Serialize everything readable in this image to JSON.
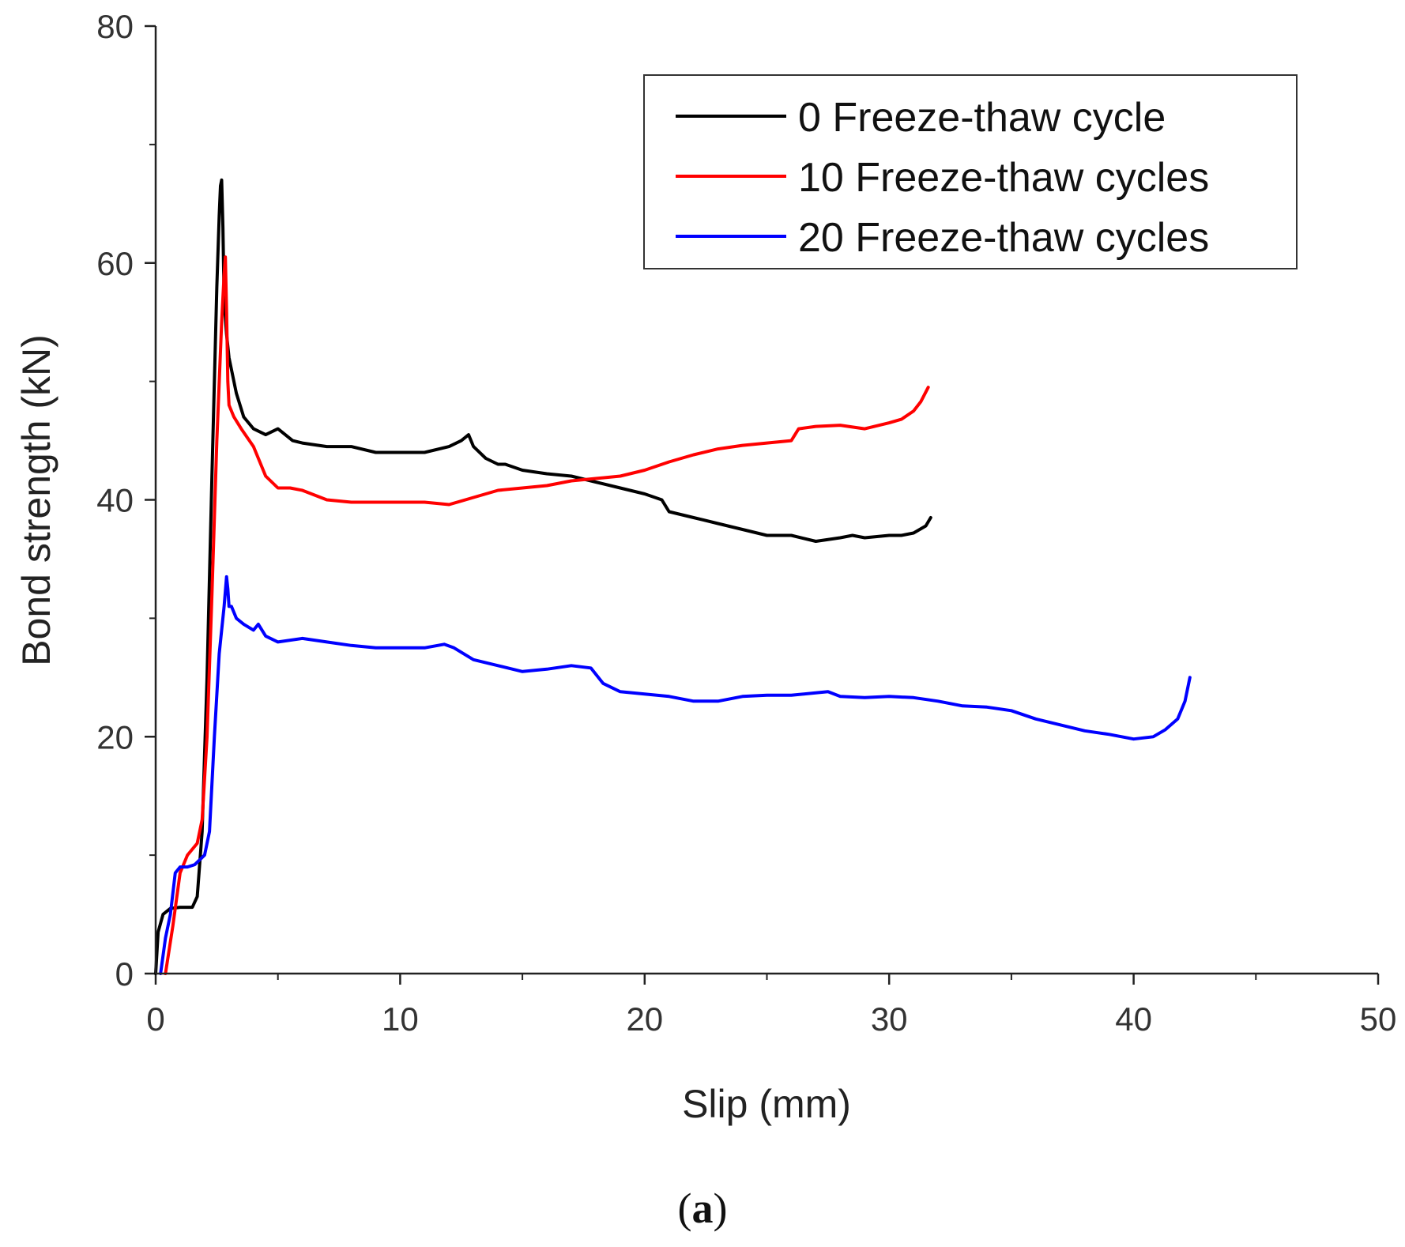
{
  "chart_data": {
    "type": "line",
    "title": "",
    "xlabel": "Slip (mm)",
    "ylabel": "Bond strength (kN)",
    "xlim": [
      0,
      50
    ],
    "ylim": [
      0,
      80
    ],
    "xticks": [
      0,
      10,
      20,
      30,
      40,
      50
    ],
    "yticks": [
      0,
      20,
      40,
      60,
      80
    ],
    "grid": false,
    "legend_position": "top-right",
    "caption": {
      "open": "(",
      "letter": "a",
      "close": ")"
    },
    "series": [
      {
        "name": "0 Freeze-thaw cycle",
        "color": "#000000",
        "x": [
          0.0,
          0.1,
          0.3,
          0.6,
          1.0,
          1.5,
          1.7,
          1.9,
          2.1,
          2.3,
          2.5,
          2.6,
          2.65,
          2.7,
          2.75,
          2.8,
          2.9,
          3.0,
          3.3,
          3.6,
          4.0,
          4.5,
          5.0,
          5.3,
          5.6,
          6.0,
          7.0,
          8.0,
          9.0,
          10.0,
          11.0,
          12.0,
          12.5,
          12.8,
          13.0,
          13.5,
          14.0,
          14.3,
          15.0,
          16.0,
          17.0,
          18.0,
          19.0,
          20.0,
          20.7,
          21.0,
          22.0,
          23.0,
          24.0,
          25.0,
          26.0,
          27.0,
          28.0,
          28.5,
          29.0,
          30.0,
          30.5,
          31.0,
          31.5,
          31.7
        ],
        "y": [
          0.0,
          3.5,
          5.0,
          5.5,
          5.6,
          5.6,
          6.5,
          12.0,
          25.0,
          42.0,
          58.0,
          64.0,
          66.5,
          67.0,
          63.0,
          57.0,
          54.0,
          52.0,
          49.0,
          47.0,
          46.0,
          45.5,
          46.0,
          45.5,
          45.0,
          44.8,
          44.5,
          44.5,
          44.0,
          44.0,
          44.0,
          44.5,
          45.0,
          45.5,
          44.5,
          43.5,
          43.0,
          43.0,
          42.5,
          42.2,
          42.0,
          41.5,
          41.0,
          40.5,
          40.0,
          39.0,
          38.5,
          38.0,
          37.5,
          37.0,
          37.0,
          36.5,
          36.8,
          37.0,
          36.8,
          37.0,
          37.0,
          37.2,
          37.8,
          38.5
        ]
      },
      {
        "name": "10 Freeze-thaw cycles",
        "color": "#ff0000",
        "x": [
          0.4,
          0.7,
          1.0,
          1.3,
          1.7,
          1.9,
          2.1,
          2.3,
          2.5,
          2.7,
          2.8,
          2.85,
          2.9,
          2.95,
          3.0,
          3.2,
          3.5,
          4.0,
          4.5,
          5.0,
          5.5,
          6.0,
          7.0,
          8.0,
          9.0,
          10.0,
          11.0,
          12.0,
          13.0,
          14.0,
          15.0,
          16.0,
          17.0,
          18.0,
          19.0,
          20.0,
          21.0,
          22.0,
          23.0,
          24.0,
          25.0,
          26.0,
          26.3,
          27.0,
          28.0,
          29.0,
          30.0,
          30.5,
          31.0,
          31.3,
          31.6
        ],
        "y": [
          0.0,
          4.0,
          8.5,
          10.0,
          11.0,
          13.0,
          20.0,
          32.0,
          45.0,
          55.0,
          59.0,
          60.5,
          56.0,
          50.0,
          48.0,
          47.0,
          46.0,
          44.5,
          42.0,
          41.0,
          41.0,
          40.8,
          40.0,
          39.8,
          39.8,
          39.8,
          39.8,
          39.6,
          40.2,
          40.8,
          41.0,
          41.2,
          41.6,
          41.8,
          42.0,
          42.5,
          43.2,
          43.8,
          44.3,
          44.6,
          44.8,
          45.0,
          46.0,
          46.2,
          46.3,
          46.0,
          46.5,
          46.8,
          47.5,
          48.3,
          49.5
        ]
      },
      {
        "name": "20 Freeze-thaw cycles",
        "color": "#0000ff",
        "x": [
          0.2,
          0.4,
          0.6,
          0.8,
          1.0,
          1.3,
          1.6,
          2.0,
          2.2,
          2.4,
          2.6,
          2.8,
          2.9,
          2.95,
          3.0,
          3.1,
          3.3,
          3.6,
          4.0,
          4.2,
          4.5,
          5.0,
          6.0,
          7.0,
          8.0,
          9.0,
          10.0,
          11.0,
          11.8,
          12.2,
          13.0,
          14.0,
          15.0,
          16.0,
          17.0,
          17.8,
          18.3,
          19.0,
          20.0,
          21.0,
          22.0,
          23.0,
          24.0,
          25.0,
          26.0,
          27.0,
          27.5,
          28.0,
          29.0,
          30.0,
          31.0,
          32.0,
          33.0,
          34.0,
          35.0,
          36.0,
          37.0,
          38.0,
          39.0,
          40.0,
          40.8,
          41.3,
          41.8,
          42.1,
          42.3
        ],
        "y": [
          0.0,
          3.0,
          5.0,
          8.5,
          9.0,
          9.0,
          9.2,
          10.0,
          12.0,
          20.0,
          27.0,
          31.0,
          33.5,
          32.5,
          31.0,
          31.0,
          30.0,
          29.5,
          29.0,
          29.5,
          28.5,
          28.0,
          28.3,
          28.0,
          27.7,
          27.5,
          27.5,
          27.5,
          27.8,
          27.5,
          26.5,
          26.0,
          25.5,
          25.7,
          26.0,
          25.8,
          24.5,
          23.8,
          23.6,
          23.4,
          23.0,
          23.0,
          23.4,
          23.5,
          23.5,
          23.7,
          23.8,
          23.4,
          23.3,
          23.4,
          23.3,
          23.0,
          22.6,
          22.5,
          22.2,
          21.5,
          21.0,
          20.5,
          20.2,
          19.8,
          20.0,
          20.6,
          21.5,
          23.0,
          25.0
        ]
      }
    ]
  }
}
